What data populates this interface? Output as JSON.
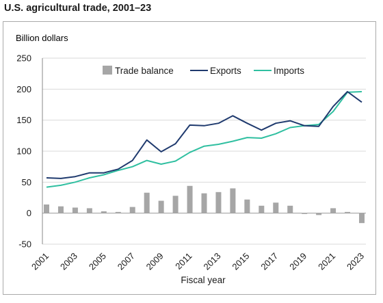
{
  "title": "U.S. agricultural trade, 2001–23",
  "chart_data": {
    "type": "bar+line",
    "ylabel": "Billion dollars",
    "xlabel": "Fiscal year",
    "ylim": [
      -50,
      250
    ],
    "yticks": [
      -50,
      0,
      50,
      100,
      150,
      200,
      250
    ],
    "x": [
      2001,
      2002,
      2003,
      2004,
      2005,
      2006,
      2007,
      2008,
      2009,
      2010,
      2011,
      2012,
      2013,
      2014,
      2015,
      2016,
      2017,
      2018,
      2019,
      2020,
      2021,
      2022,
      2023
    ],
    "xtick_labels": [
      "2001",
      "2003",
      "2005",
      "2007",
      "2009",
      "2011",
      "2013",
      "2015",
      "2017",
      "2019",
      "2021",
      "2023"
    ],
    "grid": "horizontal",
    "legend_position": "top",
    "series": [
      {
        "name": "Trade balance",
        "kind": "bar",
        "color": "#a6a6a6",
        "values": [
          14,
          11,
          9,
          8,
          3,
          2,
          10,
          33,
          20,
          28,
          44,
          32,
          34,
          40,
          22,
          12,
          17,
          12,
          -1,
          -3,
          8,
          2,
          -16
        ]
      },
      {
        "name": "Exports",
        "kind": "line",
        "color": "#1f3a6e",
        "values": [
          57,
          56,
          59,
          65,
          65,
          71,
          85,
          118,
          99,
          112,
          142,
          141,
          145,
          157,
          145,
          134,
          145,
          149,
          141,
          140,
          172,
          196,
          179
        ]
      },
      {
        "name": "Imports",
        "kind": "line",
        "color": "#2fbfa0",
        "values": [
          42,
          45,
          50,
          57,
          62,
          69,
          75,
          85,
          79,
          84,
          98,
          108,
          111,
          116,
          122,
          121,
          128,
          138,
          141,
          143,
          164,
          195,
          196
        ]
      }
    ]
  }
}
